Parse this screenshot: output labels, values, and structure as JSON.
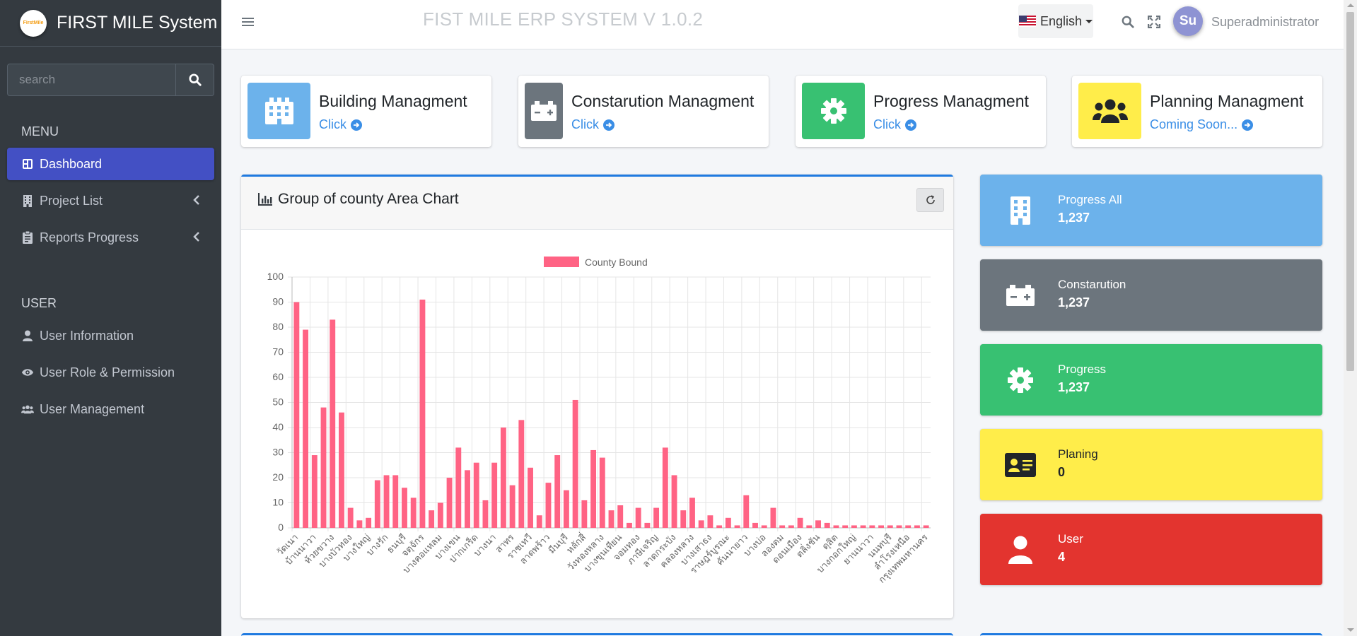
{
  "brand": {
    "name": "FIRST MILE System",
    "logo_text": "FirstMile"
  },
  "sidebar": {
    "search_placeholder": "search",
    "menu_header": "MENU",
    "user_header": "USER",
    "menu_items": [
      {
        "label": "Dashboard",
        "icon": "dashboard-icon"
      },
      {
        "label": "Project List",
        "icon": "building-icon"
      },
      {
        "label": "Reports Progress",
        "icon": "clipboard-icon"
      }
    ],
    "user_items": [
      {
        "label": "User Information",
        "icon": "user-icon"
      },
      {
        "label": "User Role & Permission",
        "icon": "eye-icon"
      },
      {
        "label": "User Management",
        "icon": "users-icon"
      }
    ]
  },
  "topbar": {
    "system_title": "FIST MILE ERP SYSTEM V 1.0.2",
    "language": "English",
    "avatar_initials": "Su",
    "username": "Superadministrator"
  },
  "shortcut_cards": [
    {
      "title": "Building Managment",
      "link": "Click",
      "color": "#6cb2eb"
    },
    {
      "title": "Constarution Managment",
      "link": "Click",
      "color": "#6c757d"
    },
    {
      "title": "Progress Managment",
      "link": "Click",
      "color": "#38c172"
    },
    {
      "title": "Planning Managment",
      "link": "Coming Soon...",
      "color": "#ffed4a"
    }
  ],
  "chart_card": {
    "title": "Group of county Area Chart"
  },
  "info_boxes": [
    {
      "label": "Progress All",
      "value": "1,237",
      "color": "#6cb2eb",
      "icon": "building-icon"
    },
    {
      "label": "Constarution",
      "value": "1,237",
      "color": "#6c757d",
      "icon": "battery-icon"
    },
    {
      "label": "Progress",
      "value": "1,237",
      "color": "#38c172",
      "icon": "gear-icon"
    },
    {
      "label": "Planing",
      "value": "0",
      "color": "#ffed4a",
      "icon": "id-card-icon"
    },
    {
      "label": "User",
      "value": "4",
      "color": "#e3342f",
      "icon": "user-icon"
    }
  ],
  "chart_data": {
    "type": "bar",
    "title": "",
    "legend": "County Bound",
    "legend_position": "top",
    "bar_color": "#ff6384",
    "ylim": [
      0,
      100
    ],
    "yticks": [
      0,
      10,
      20,
      30,
      40,
      50,
      60,
      70,
      80,
      90,
      100
    ],
    "categories": [
      "วัดเนา",
      "",
      "บ้านนาวา",
      "",
      "ห้วยขวาง",
      "",
      "บางบัวทอง",
      "",
      "บางใหญ่",
      "",
      "บางรัก",
      "",
      "ธนบุรี",
      "",
      "จตุจักร",
      "",
      "บางคอแหลม",
      "",
      "บางเขน",
      "",
      "ปากเกร็ด",
      "",
      "บางนา",
      "",
      "สาทร",
      "",
      "ราชเทวี",
      "",
      "ลาดพร้าว",
      "",
      "มีนบุรี",
      "",
      "หลักสี่",
      "",
      "วังทองหลาง",
      "",
      "บางขุนเทียน",
      "",
      "จอมทอง",
      "",
      "ภาษีเจริญ",
      "",
      "ลาดกระบัง",
      "",
      "คลองหลวง",
      "",
      "บางเสาธง",
      "",
      "ราษฎร์บูรณะ",
      "",
      "คันนายาว",
      "",
      "บางบ่อ",
      "",
      "ลองตม",
      "",
      "ดอนเมือง",
      "",
      "ตลิ่งชัน",
      "",
      "ดุสิต",
      "",
      "บางกอกใหญ่",
      "",
      "ยานนาวา",
      "",
      "นนทบุรี",
      "",
      "ลำโรงเหนือ",
      "",
      "กรุงเทพมหานคร"
    ],
    "values": [
      90,
      79,
      29,
      48,
      83,
      46,
      8,
      3,
      4,
      19,
      21,
      21,
      16,
      12,
      91,
      7,
      10,
      20,
      32,
      23,
      26,
      11,
      26,
      40,
      17,
      43,
      24,
      5,
      18,
      29,
      15,
      51,
      11,
      31,
      28,
      7,
      9,
      2,
      8,
      2,
      8,
      32,
      21,
      7,
      12,
      3,
      5,
      1,
      4,
      1,
      13,
      2,
      1,
      8,
      1,
      1,
      4,
      1,
      3,
      2,
      1,
      1,
      1,
      1,
      1,
      1,
      1,
      1,
      1,
      1,
      1
    ]
  }
}
